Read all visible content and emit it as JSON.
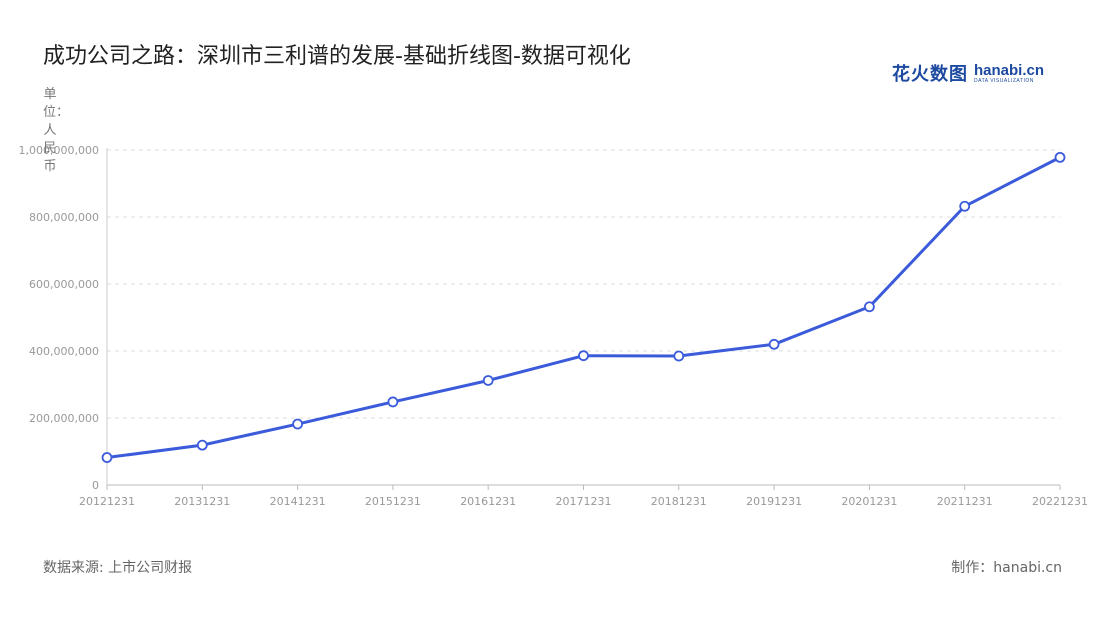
{
  "title": "成功公司之路：深圳市三利谱的发展-基础折线图-数据可视化",
  "logo": {
    "cn": "花火数图",
    "en": "hanabi.cn",
    "sub": "DATA VISUALIZATION"
  },
  "colors": {
    "line": "#3b5bdb",
    "grid": "#dddddd",
    "axis_text": "#999999"
  },
  "footer": {
    "source": "数据来源: 上市公司财报",
    "credit": "制作：hanabi.cn"
  },
  "chart_data": {
    "type": "line",
    "ylabel": "单位：人民币",
    "ylim": [
      0,
      1000000000
    ],
    "yticks": [
      "0",
      "200,000,000",
      "400,000,000",
      "600,000,000",
      "800,000,000",
      "1,000,000,000"
    ],
    "grid": true,
    "categories": [
      "20121231",
      "20131231",
      "20141231",
      "20151231",
      "20161231",
      "20171231",
      "20181231",
      "20191231",
      "20201231",
      "20211231",
      "20221231"
    ],
    "values": [
      82000000,
      119000000,
      182000000,
      248000000,
      312000000,
      386000000,
      385000000,
      420000000,
      532000000,
      832000000,
      978000000
    ]
  }
}
